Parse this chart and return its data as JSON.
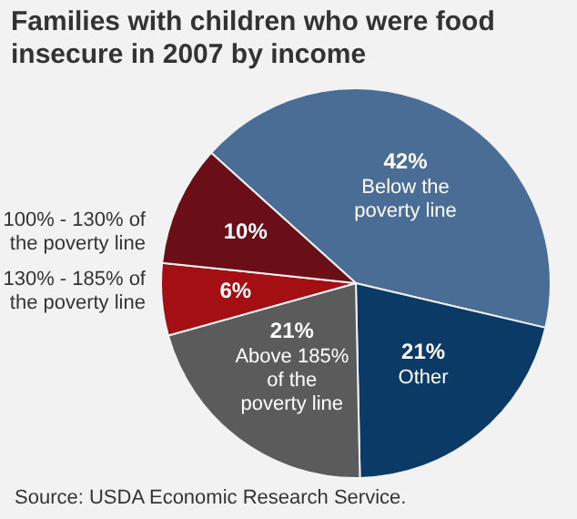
{
  "chart_data": {
    "type": "pie",
    "title": "Families with children who were food insecure in 2007 by income",
    "categories": [
      "Below the poverty line",
      "Other",
      "Above 185% of the poverty line",
      "130% - 185% of the poverty line",
      "100% - 130% of the poverty line"
    ],
    "values": [
      42,
      21,
      21,
      6,
      10
    ],
    "colors": [
      "#4a6d96",
      "#0b3a66",
      "#5b5b5b",
      "#a30f12",
      "#6a0f18"
    ],
    "legend": false,
    "value_labels": [
      "42%",
      "21%",
      "21%",
      "6%",
      "10%"
    ],
    "annotations": [
      "Source: USDA Economic Research Service."
    ]
  }
}
